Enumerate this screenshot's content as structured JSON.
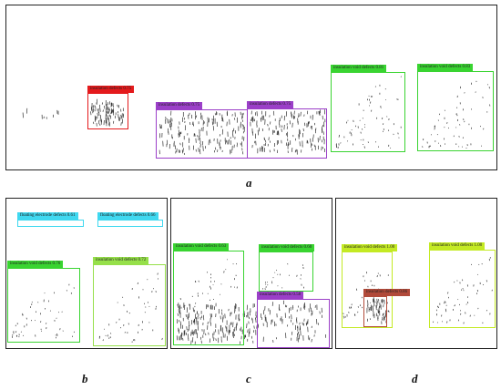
{
  "colors": {
    "red": "#e41a1c",
    "purple": "#9b3fc8",
    "green": "#39d431",
    "lightgreen": "#96e04a",
    "cyan": "#3fd8f0",
    "yellowgreen": "#c4ea23",
    "brown": "#b14a3a"
  },
  "panels": {
    "a": {
      "caption": "a",
      "detections": [
        {
          "label": "insulation defects 0.75",
          "class": "red"
        },
        {
          "label": "insulation defects 0.75",
          "class": "purple"
        },
        {
          "label": "insulation defects 0.75",
          "class": "purple"
        },
        {
          "label": "insulation void defects 0.81",
          "class": "green"
        },
        {
          "label": "insulation void defects 0.83",
          "class": "green"
        }
      ]
    },
    "b": {
      "caption": "b",
      "detections": [
        {
          "label": "floating electrode defects 0.61",
          "class": "cyan"
        },
        {
          "label": "floating electrode defects 0.66",
          "class": "cyan"
        },
        {
          "label": "insulation void defects 0.76",
          "class": "green"
        },
        {
          "label": "insulation void defects 0.72",
          "class": "lightgreen"
        }
      ]
    },
    "c": {
      "caption": "c",
      "detections": [
        {
          "label": "insulation void defects 0.63",
          "class": "green"
        },
        {
          "label": "insulation void defects 0.60",
          "class": "green"
        },
        {
          "label": "insulation defects 0.58",
          "class": "purple"
        }
      ]
    },
    "d": {
      "caption": "d",
      "detections": [
        {
          "label": "insulation void defects 1.00",
          "class": "yellowgreen"
        },
        {
          "label": "insulation void defects 1.00",
          "class": "yellowgreen"
        },
        {
          "label": "insulation defects 0.86",
          "class": "brown"
        }
      ]
    }
  }
}
